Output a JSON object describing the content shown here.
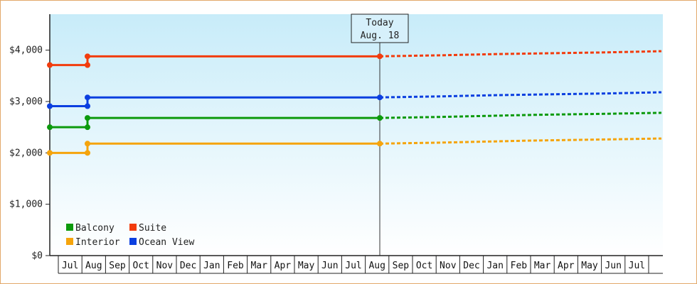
{
  "chart_data": {
    "type": "line",
    "y_ticks": [
      "$0",
      "$1,000",
      "$2,000",
      "$3,000",
      "$4,000"
    ],
    "ylim": [
      0,
      4700
    ],
    "x_months": [
      "Jul",
      "Aug",
      "Sep",
      "Oct",
      "Nov",
      "Dec",
      "Jan",
      "Feb",
      "Mar",
      "Apr",
      "May",
      "Jun",
      "Jul",
      "Aug",
      "Sep",
      "Oct",
      "Nov",
      "Dec",
      "Jan",
      "Feb",
      "Mar",
      "Apr",
      "May",
      "Jun",
      "Jul"
    ],
    "today_marker": {
      "line1": "Today",
      "line2": "Aug. 18",
      "month_pos": 13.35
    },
    "legend_placement": "bottom-left",
    "grid": false,
    "series": [
      {
        "name": "Suite",
        "color": "#f23c0d",
        "historical": [
          [
            0,
            3710
          ],
          [
            1.5,
            3710
          ],
          [
            1.5,
            3880
          ],
          [
            13.35,
            3880
          ]
        ],
        "forecast": [
          [
            13.35,
            3880
          ],
          [
            16,
            3900
          ],
          [
            18,
            3920
          ],
          [
            20,
            3935
          ],
          [
            23,
            3955
          ],
          [
            25.6,
            3980
          ]
        ]
      },
      {
        "name": "Ocean View",
        "color": "#0b3fe0",
        "historical": [
          [
            0,
            2910
          ],
          [
            1.5,
            2910
          ],
          [
            1.5,
            3080
          ],
          [
            13.35,
            3080
          ]
        ],
        "forecast": [
          [
            13.35,
            3080
          ],
          [
            16,
            3100
          ],
          [
            18,
            3120
          ],
          [
            20,
            3135
          ],
          [
            23,
            3155
          ],
          [
            25.6,
            3180
          ]
        ]
      },
      {
        "name": "Balcony",
        "color": "#0c9a0c",
        "historical": [
          [
            0,
            2500
          ],
          [
            1.5,
            2500
          ],
          [
            1.5,
            2680
          ],
          [
            13.35,
            2680
          ]
        ],
        "forecast": [
          [
            13.35,
            2680
          ],
          [
            16,
            2700
          ],
          [
            18,
            2720
          ],
          [
            20,
            2740
          ],
          [
            23,
            2760
          ],
          [
            25.6,
            2780
          ]
        ]
      },
      {
        "name": "Interior",
        "color": "#f5a40c",
        "historical": [
          [
            0,
            2000
          ],
          [
            1.5,
            2000
          ],
          [
            1.5,
            2180
          ],
          [
            13.35,
            2180
          ]
        ],
        "forecast": [
          [
            13.35,
            2180
          ],
          [
            16,
            2200
          ],
          [
            18,
            2220
          ],
          [
            20,
            2240
          ],
          [
            23,
            2260
          ],
          [
            25.6,
            2280
          ]
        ]
      }
    ],
    "markers": [
      {
        "series": "Suite",
        "points": [
          [
            0,
            3710
          ],
          [
            1.5,
            3710
          ],
          [
            1.5,
            3880
          ],
          [
            13.35,
            3880
          ]
        ]
      },
      {
        "series": "Ocean View",
        "points": [
          [
            0,
            2910
          ],
          [
            1.5,
            2910
          ],
          [
            1.5,
            3080
          ],
          [
            13.35,
            3080
          ]
        ]
      },
      {
        "series": "Balcony",
        "points": [
          [
            0,
            2500
          ],
          [
            1.5,
            2500
          ],
          [
            1.5,
            2680
          ],
          [
            13.35,
            2680
          ]
        ]
      },
      {
        "series": "Interior",
        "points": [
          [
            0,
            2000
          ],
          [
            1.5,
            2000
          ],
          [
            1.5,
            2180
          ],
          [
            13.35,
            2180
          ]
        ]
      }
    ],
    "legend": [
      {
        "name": "Balcony",
        "color": "#0c9a0c"
      },
      {
        "name": "Suite",
        "color": "#f23c0d"
      },
      {
        "name": "Interior",
        "color": "#f5a40c"
      },
      {
        "name": "Ocean View",
        "color": "#0b3fe0"
      }
    ]
  }
}
